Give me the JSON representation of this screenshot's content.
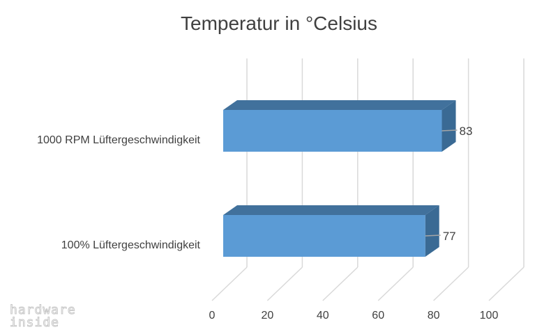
{
  "chart_data": {
    "type": "bar",
    "orientation": "horizontal",
    "style": "3d",
    "title": "Temperatur in °Celsius",
    "categories": [
      "1000 RPM Lüftergeschwindigkeit",
      "100% Lüftergeschwindigkeit"
    ],
    "values": [
      83,
      77
    ],
    "data_labels": [
      "83",
      "77"
    ],
    "xlim": [
      0,
      100
    ],
    "x_ticks": [
      0,
      20,
      40,
      60,
      80,
      100
    ],
    "xlabel": "",
    "ylabel": "",
    "grid": true,
    "legend": "none",
    "colors": {
      "bar_front": "#5b9bd5",
      "bar_top": "#41719c",
      "bar_side": "#3a6a94",
      "grid": "#d9d9d9",
      "text": "#404040"
    }
  },
  "watermark": {
    "line1": "hardware",
    "line2": "inside"
  }
}
